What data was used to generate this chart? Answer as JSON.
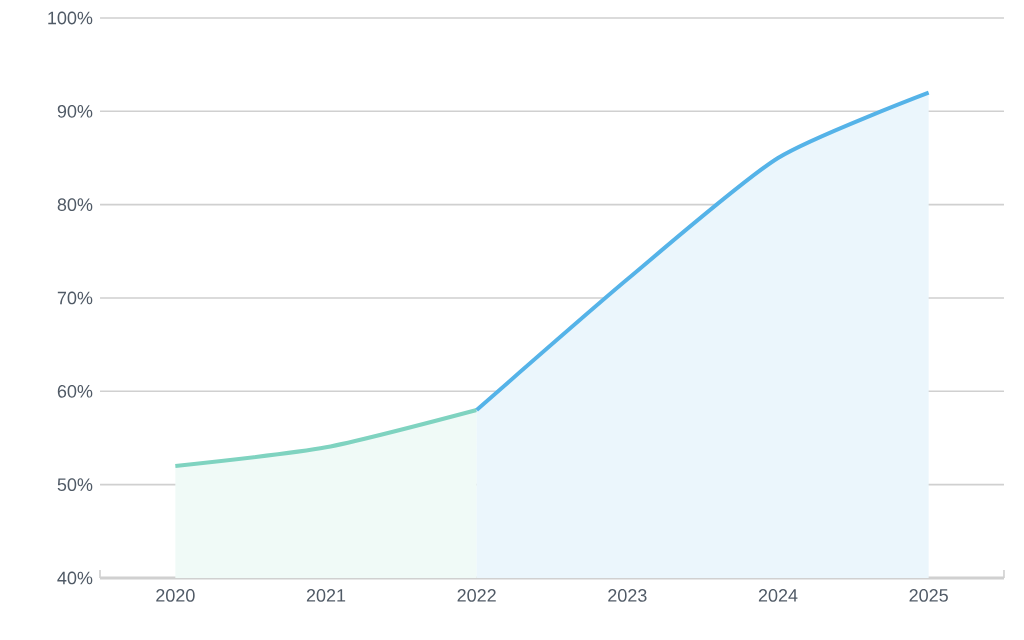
{
  "chart_data": {
    "type": "area",
    "categories": [
      "2020",
      "2021",
      "2022",
      "2023",
      "2024",
      "2025"
    ],
    "series": [
      {
        "color": "#7fd3c0",
        "values": [
          52,
          54,
          58,
          null,
          null,
          null
        ]
      },
      {
        "color": "#55b3e8",
        "values": [
          null,
          null,
          58,
          72,
          85,
          92
        ]
      }
    ],
    "ylim": [
      40,
      100
    ],
    "yticks": [
      {
        "value": 40,
        "label": "40%"
      },
      {
        "value": 50,
        "label": "50%"
      },
      {
        "value": 60,
        "label": "60%"
      },
      {
        "value": 70,
        "label": "70%"
      },
      {
        "value": 80,
        "label": "80%"
      },
      {
        "value": 90,
        "label": "90%"
      },
      {
        "value": 100,
        "label": "100%"
      }
    ],
    "grid": "y"
  }
}
